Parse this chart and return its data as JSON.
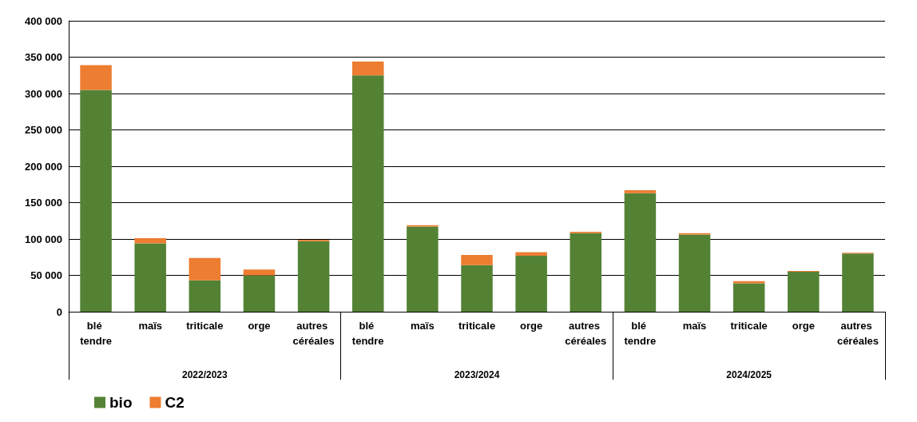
{
  "chart_data": {
    "type": "bar",
    "stacked": true,
    "categories": [
      "blé tendre",
      "maïs",
      "triticale",
      "orge",
      "autres céréales",
      "blé tendre",
      "maïs",
      "triticale",
      "orge",
      "autres céréales",
      "blé tendre",
      "maïs",
      "triticale",
      "orge",
      "autres céréales"
    ],
    "annotations": [
      "2022/2023",
      "2023/2024",
      "2024/2025"
    ],
    "series": [
      {
        "name": "bio",
        "color": "#548235",
        "values": [
          305000,
          94000,
          43000,
          50000,
          97000,
          325000,
          117000,
          64000,
          77000,
          108000,
          163000,
          106000,
          39000,
          55000,
          80000
        ]
      },
      {
        "name": "C2",
        "color": "#ed7d31",
        "values": [
          34000,
          7000,
          31000,
          8000,
          2000,
          19000,
          2000,
          14000,
          5000,
          2000,
          4000,
          2000,
          3000,
          1000,
          1000
        ]
      }
    ],
    "ylim": [
      0,
      400000
    ],
    "yticks": [
      0,
      50000,
      100000,
      150000,
      200000,
      250000,
      300000,
      350000,
      400000
    ],
    "grid": "y",
    "legend": "bottom left"
  }
}
